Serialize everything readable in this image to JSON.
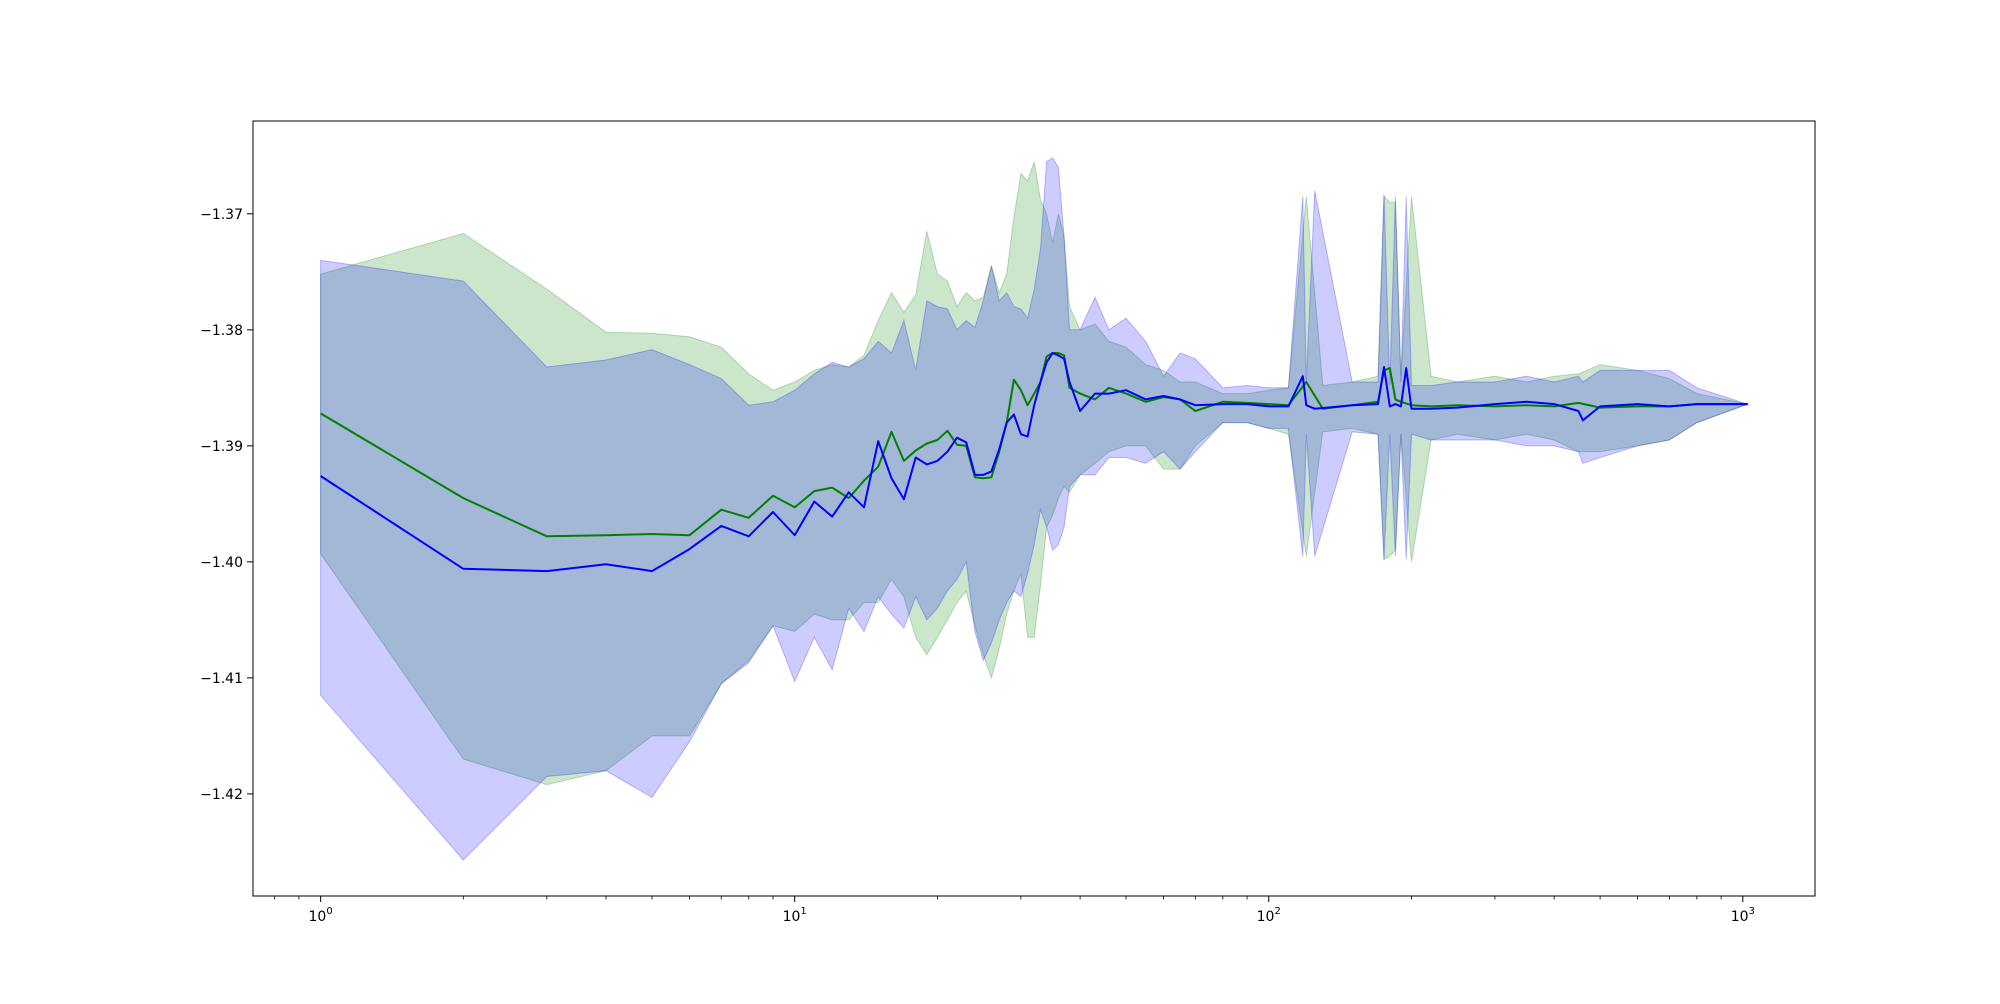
{
  "chart_data": {
    "type": "line",
    "title": "",
    "xlabel": "",
    "ylabel": "",
    "xscale": "log",
    "xlim": [
      0.72,
      1420
    ],
    "ylim": [
      -1.4288,
      -1.362
    ],
    "grid": false,
    "legend": "none",
    "x_ticks": [
      {
        "value": 1,
        "base": "10",
        "exp": "0"
      },
      {
        "value": 10,
        "base": "10",
        "exp": "1"
      },
      {
        "value": 100,
        "base": "10",
        "exp": "2"
      },
      {
        "value": 1000,
        "base": "10",
        "exp": "3"
      }
    ],
    "y_ticks": [
      {
        "value": -1.37,
        "label": "−1.37"
      },
      {
        "value": -1.38,
        "label": "−1.38"
      },
      {
        "value": -1.39,
        "label": "−1.39"
      },
      {
        "value": -1.4,
        "label": "−1.40"
      },
      {
        "value": -1.41,
        "label": "−1.41"
      },
      {
        "value": -1.42,
        "label": "−1.42"
      }
    ],
    "series": [
      {
        "color": "#008000",
        "band_color": "#008000",
        "x": [
          1,
          2,
          3,
          4,
          5,
          6,
          7,
          8,
          9,
          10,
          11,
          12,
          13,
          14,
          15,
          16,
          17,
          18,
          19,
          20,
          21,
          22,
          23,
          24,
          25,
          26,
          27,
          28,
          29,
          30,
          31,
          32,
          33,
          34,
          35,
          36,
          37,
          38,
          40,
          43,
          46,
          50,
          55,
          60,
          65,
          70,
          80,
          90,
          100,
          110,
          120,
          130,
          150,
          170,
          175,
          180,
          185,
          190,
          200,
          220,
          250,
          300,
          350,
          400,
          450,
          500,
          600,
          700,
          800,
          1024
        ],
        "mean": [
          -1.3872,
          -1.3945,
          -1.3978,
          -1.3977,
          -1.3976,
          -1.3977,
          -1.3955,
          -1.3962,
          -1.3943,
          -1.3953,
          -1.3939,
          -1.3936,
          -1.3945,
          -1.393,
          -1.3918,
          -1.3888,
          -1.3913,
          -1.3904,
          -1.3898,
          -1.3895,
          -1.3887,
          -1.3899,
          -1.39,
          -1.3927,
          -1.3928,
          -1.3927,
          -1.3905,
          -1.388,
          -1.3843,
          -1.3852,
          -1.3865,
          -1.3855,
          -1.3845,
          -1.3823,
          -1.382,
          -1.382,
          -1.3822,
          -1.385,
          -1.3855,
          -1.386,
          -1.385,
          -1.3855,
          -1.3862,
          -1.3858,
          -1.386,
          -1.387,
          -1.3862,
          -1.3863,
          -1.3864,
          -1.3865,
          -1.3845,
          -1.3868,
          -1.3865,
          -1.3862,
          -1.3835,
          -1.3833,
          -1.386,
          -1.3862,
          -1.3865,
          -1.3866,
          -1.3865,
          -1.3866,
          -1.3865,
          -1.3866,
          -1.3863,
          -1.3867,
          -1.3866,
          -1.3866,
          -1.3864,
          -1.3864
        ],
        "upper": [
          -1.3752,
          -1.3717,
          -1.3765,
          -1.3802,
          -1.3803,
          -1.3806,
          -1.3815,
          -1.3838,
          -1.3852,
          -1.3845,
          -1.3835,
          -1.383,
          -1.3832,
          -1.3822,
          -1.3792,
          -1.3768,
          -1.3785,
          -1.377,
          -1.3715,
          -1.3752,
          -1.3758,
          -1.378,
          -1.3768,
          -1.3775,
          -1.3772,
          -1.3745,
          -1.3768,
          -1.3752,
          -1.3703,
          -1.3665,
          -1.3672,
          -1.3655,
          -1.3688,
          -1.37,
          -1.3725,
          -1.37,
          -1.372,
          -1.378,
          -1.38,
          -1.3795,
          -1.381,
          -1.3815,
          -1.383,
          -1.3835,
          -1.3845,
          -1.3845,
          -1.3855,
          -1.3855,
          -1.3852,
          -1.385,
          -1.3685,
          -1.3848,
          -1.3845,
          -1.384,
          -1.3685,
          -1.369,
          -1.369,
          -1.384,
          -1.3685,
          -1.384,
          -1.3845,
          -1.384,
          -1.3845,
          -1.384,
          -1.3838,
          -1.383,
          -1.3835,
          -1.3842,
          -1.3855,
          -1.3864
        ],
        "lower": [
          -1.3993,
          -1.417,
          -1.4192,
          -1.418,
          -1.415,
          -1.415,
          -1.4105,
          -1.4085,
          -1.4055,
          -1.406,
          -1.4045,
          -1.405,
          -1.405,
          -1.4035,
          -1.4035,
          -1.4015,
          -1.403,
          -1.4065,
          -1.408,
          -1.4065,
          -1.405,
          -1.4035,
          -1.4025,
          -1.4055,
          -1.408,
          -1.41,
          -1.4075,
          -1.4045,
          -1.4025,
          -1.401,
          -1.4065,
          -1.4065,
          -1.402,
          -1.397,
          -1.396,
          -1.3945,
          -1.3935,
          -1.394,
          -1.3925,
          -1.3915,
          -1.3905,
          -1.39,
          -1.39,
          -1.392,
          -1.392,
          -1.39,
          -1.388,
          -1.388,
          -1.3885,
          -1.389,
          -1.3995,
          -1.3888,
          -1.3885,
          -1.389,
          -1.3998,
          -1.3995,
          -1.399,
          -1.389,
          -1.4,
          -1.3895,
          -1.389,
          -1.3895,
          -1.389,
          -1.3895,
          -1.3905,
          -1.3905,
          -1.39,
          -1.3895,
          -1.388,
          -1.3864
        ]
      },
      {
        "color": "#0000ff",
        "band_color": "#0000ff",
        "x": [
          1,
          2,
          3,
          4,
          5,
          6,
          7,
          8,
          9,
          10,
          11,
          12,
          13,
          14,
          15,
          16,
          17,
          18,
          19,
          20,
          21,
          22,
          23,
          24,
          25,
          26,
          27,
          28,
          29,
          30,
          31,
          32,
          33,
          34,
          35,
          36,
          37,
          38,
          40,
          43,
          46,
          50,
          55,
          60,
          65,
          70,
          80,
          90,
          100,
          110,
          118,
          120,
          125,
          150,
          170,
          175,
          180,
          185,
          190,
          195,
          200,
          220,
          250,
          300,
          350,
          400,
          450,
          460,
          500,
          600,
          700,
          800,
          1024
        ],
        "mean": [
          -1.3926,
          -1.4006,
          -1.4008,
          -1.4002,
          -1.4008,
          -1.3989,
          -1.3969,
          -1.3978,
          -1.3957,
          -1.3977,
          -1.3948,
          -1.3961,
          -1.394,
          -1.3953,
          -1.3896,
          -1.3928,
          -1.3946,
          -1.391,
          -1.3916,
          -1.3913,
          -1.3905,
          -1.3893,
          -1.3897,
          -1.3925,
          -1.3925,
          -1.3922,
          -1.3903,
          -1.388,
          -1.3873,
          -1.389,
          -1.3892,
          -1.3865,
          -1.3845,
          -1.3828,
          -1.382,
          -1.3822,
          -1.3825,
          -1.3845,
          -1.387,
          -1.3855,
          -1.3855,
          -1.3852,
          -1.386,
          -1.3857,
          -1.386,
          -1.3865,
          -1.3864,
          -1.3864,
          -1.3866,
          -1.3866,
          -1.384,
          -1.3865,
          -1.3868,
          -1.3865,
          -1.3864,
          -1.3832,
          -1.3866,
          -1.3864,
          -1.3866,
          -1.3833,
          -1.3868,
          -1.3868,
          -1.3867,
          -1.3864,
          -1.3862,
          -1.3864,
          -1.387,
          -1.3878,
          -1.3866,
          -1.3864,
          -1.3866,
          -1.3864,
          -1.3864
        ],
        "upper": [
          -1.374,
          -1.3758,
          -1.3832,
          -1.3826,
          -1.3817,
          -1.383,
          -1.3842,
          -1.3865,
          -1.3862,
          -1.3852,
          -1.3838,
          -1.3828,
          -1.3832,
          -1.3825,
          -1.381,
          -1.382,
          -1.3792,
          -1.3835,
          -1.3775,
          -1.378,
          -1.3782,
          -1.38,
          -1.3792,
          -1.3798,
          -1.3775,
          -1.3745,
          -1.3775,
          -1.3768,
          -1.378,
          -1.3782,
          -1.379,
          -1.3765,
          -1.373,
          -1.3655,
          -1.3652,
          -1.366,
          -1.372,
          -1.38,
          -1.38,
          -1.3772,
          -1.38,
          -1.379,
          -1.381,
          -1.384,
          -1.382,
          -1.3825,
          -1.385,
          -1.3848,
          -1.385,
          -1.385,
          -1.3685,
          -1.3845,
          -1.368,
          -1.3845,
          -1.3845,
          -1.3683,
          -1.3848,
          -1.3685,
          -1.3845,
          -1.3685,
          -1.3848,
          -1.3848,
          -1.3845,
          -1.3845,
          -1.384,
          -1.3845,
          -1.384,
          -1.3845,
          -1.3835,
          -1.3835,
          -1.3835,
          -1.385,
          -1.3864
        ],
        "lower": [
          -1.4115,
          -1.4257,
          -1.4185,
          -1.418,
          -1.4203,
          -1.4155,
          -1.4105,
          -1.4087,
          -1.4055,
          -1.4103,
          -1.4065,
          -1.4093,
          -1.404,
          -1.406,
          -1.403,
          -1.4045,
          -1.4057,
          -1.403,
          -1.405,
          -1.404,
          -1.4025,
          -1.4015,
          -1.4,
          -1.406,
          -1.4085,
          -1.407,
          -1.405,
          -1.4035,
          -1.4025,
          -1.403,
          -1.401,
          -1.3985,
          -1.3955,
          -1.397,
          -1.399,
          -1.3985,
          -1.397,
          -1.3935,
          -1.3925,
          -1.3925,
          -1.391,
          -1.391,
          -1.3915,
          -1.3905,
          -1.392,
          -1.3905,
          -1.388,
          -1.388,
          -1.3885,
          -1.3885,
          -1.3995,
          -1.389,
          -1.3995,
          -1.3888,
          -1.389,
          -1.3998,
          -1.389,
          -1.3995,
          -1.389,
          -1.3998,
          -1.389,
          -1.3895,
          -1.3895,
          -1.3895,
          -1.39,
          -1.39,
          -1.3905,
          -1.3915,
          -1.391,
          -1.39,
          -1.3895,
          -1.388,
          -1.3864
        ]
      }
    ]
  }
}
